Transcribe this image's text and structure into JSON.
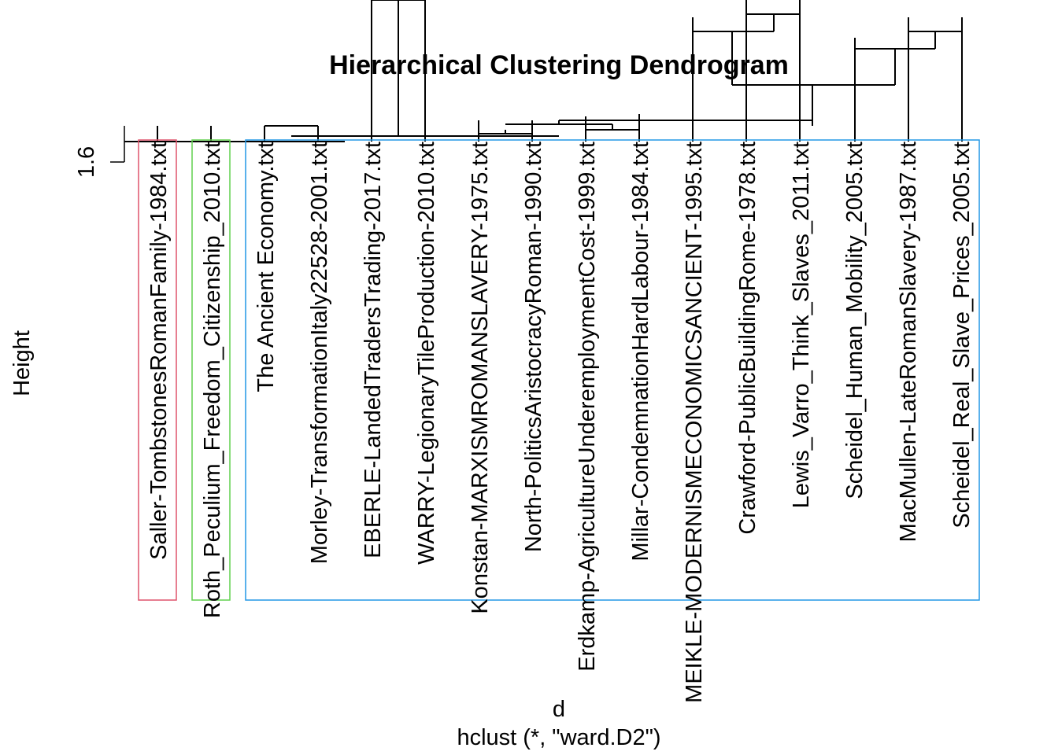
{
  "chart_data": {
    "type": "dendrogram",
    "title": "Hierarchical Clustering Dendrogram",
    "xlabel": "d",
    "sub": "hclust (*, \"ward.D2\")",
    "ylabel": "Height",
    "y_ticks": [
      "1.6"
    ],
    "leaves": [
      "Saller-TombstonesRomanFamily-1984.txt",
      "Roth_Peculium_Freedom_Citizenship_2010.txt",
      "The Ancient Economy.txt",
      "Morley-TransformationItaly22528-2001.txt",
      "EBERLE-LandedTradersTrading-2017.txt",
      "WARRY-LegionaryTileProduction-2010.txt",
      "Konstan-MARXISMROMANSLAVERY-1975.txt",
      "North-PoliticsAristocracyRoman-1990.txt",
      "Erdkamp-AgricultureUnderemploymentCost-1999.txt",
      "Millar-CondemnationHardLabour-1984.txt",
      "MEIKLE-MODERNISMECONOMICSANCIENT-1995.txt",
      "Crawford-PublicBuildingRome-1978.txt",
      "Lewis_Varro_Think_Slaves_2011.txt",
      "Scheidel_Human_Mobility_2005.txt",
      "MacMullen-LateRomanSlavery-1987.txt",
      "Scheidel_Real_Slave_Prices_2005.txt"
    ],
    "clusters": [
      {
        "leaves": [
          0
        ],
        "color": "#DF536B"
      },
      {
        "leaves": [
          1
        ],
        "color": "#61D04F"
      },
      {
        "leaves": [
          2,
          3,
          4,
          5,
          6,
          7,
          8,
          9,
          10,
          11,
          12,
          13,
          14,
          15
        ],
        "color": "#2297E6"
      }
    ]
  }
}
